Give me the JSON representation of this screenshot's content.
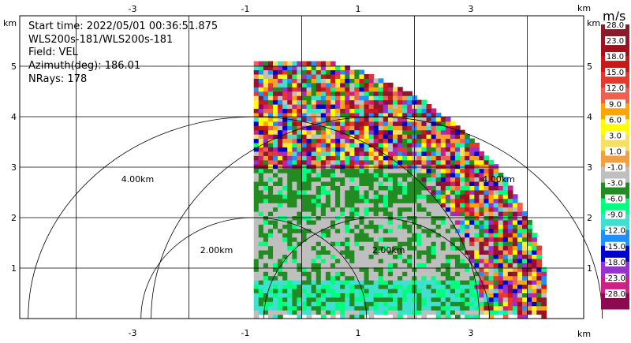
{
  "info": {
    "start_time": "Start time: 2022/05/01 00:36:51.875",
    "instrument": "WLS200s-181/WLS200s-181",
    "field": "Field: VEL",
    "azimuth": "Azimuth(deg): 186.01",
    "nrays": "NRays: 178"
  },
  "chart_data": {
    "type": "heatmap",
    "xlabel": "km",
    "ylabel": "km",
    "xlim": [
      -5,
      5
    ],
    "ylim": [
      0,
      6
    ],
    "x_ticks": [
      "-3",
      "-1",
      "1",
      "3"
    ],
    "y_ticks": [
      "1",
      "2",
      "3",
      "4",
      "5"
    ],
    "range_rings": [
      {
        "radius_km": 2,
        "label": "2.00km"
      },
      {
        "radius_km": 4,
        "label": "4.00km"
      }
    ],
    "data_coverage": {
      "x_km": [
        -0.85,
        4.25
      ],
      "y_km": [
        0,
        5.05
      ]
    },
    "colorbar": {
      "unit": "m/s",
      "levels": [
        "28.0",
        "23.0",
        "18.0",
        "15.0",
        "12.0",
        "9.0",
        "6.0",
        "3.0",
        "1.0",
        "-1.0",
        "-3.0",
        "-6.0",
        "-9.0",
        "-12.0",
        "-15.0",
        "-18.0",
        "-23.0",
        "-28.0"
      ],
      "colors": [
        "#8b1a2a",
        "#a01020",
        "#c81818",
        "#e23a30",
        "#f06050",
        "#ffa500",
        "#ffff00",
        "#f6e060",
        "#f0a040",
        "#bfbfbf",
        "#228b22",
        "#00ff7f",
        "#40e0d0",
        "#1e90ff",
        "#0000cd",
        "#9932cc",
        "#cc2288",
        "#8b0a50"
      ]
    }
  }
}
